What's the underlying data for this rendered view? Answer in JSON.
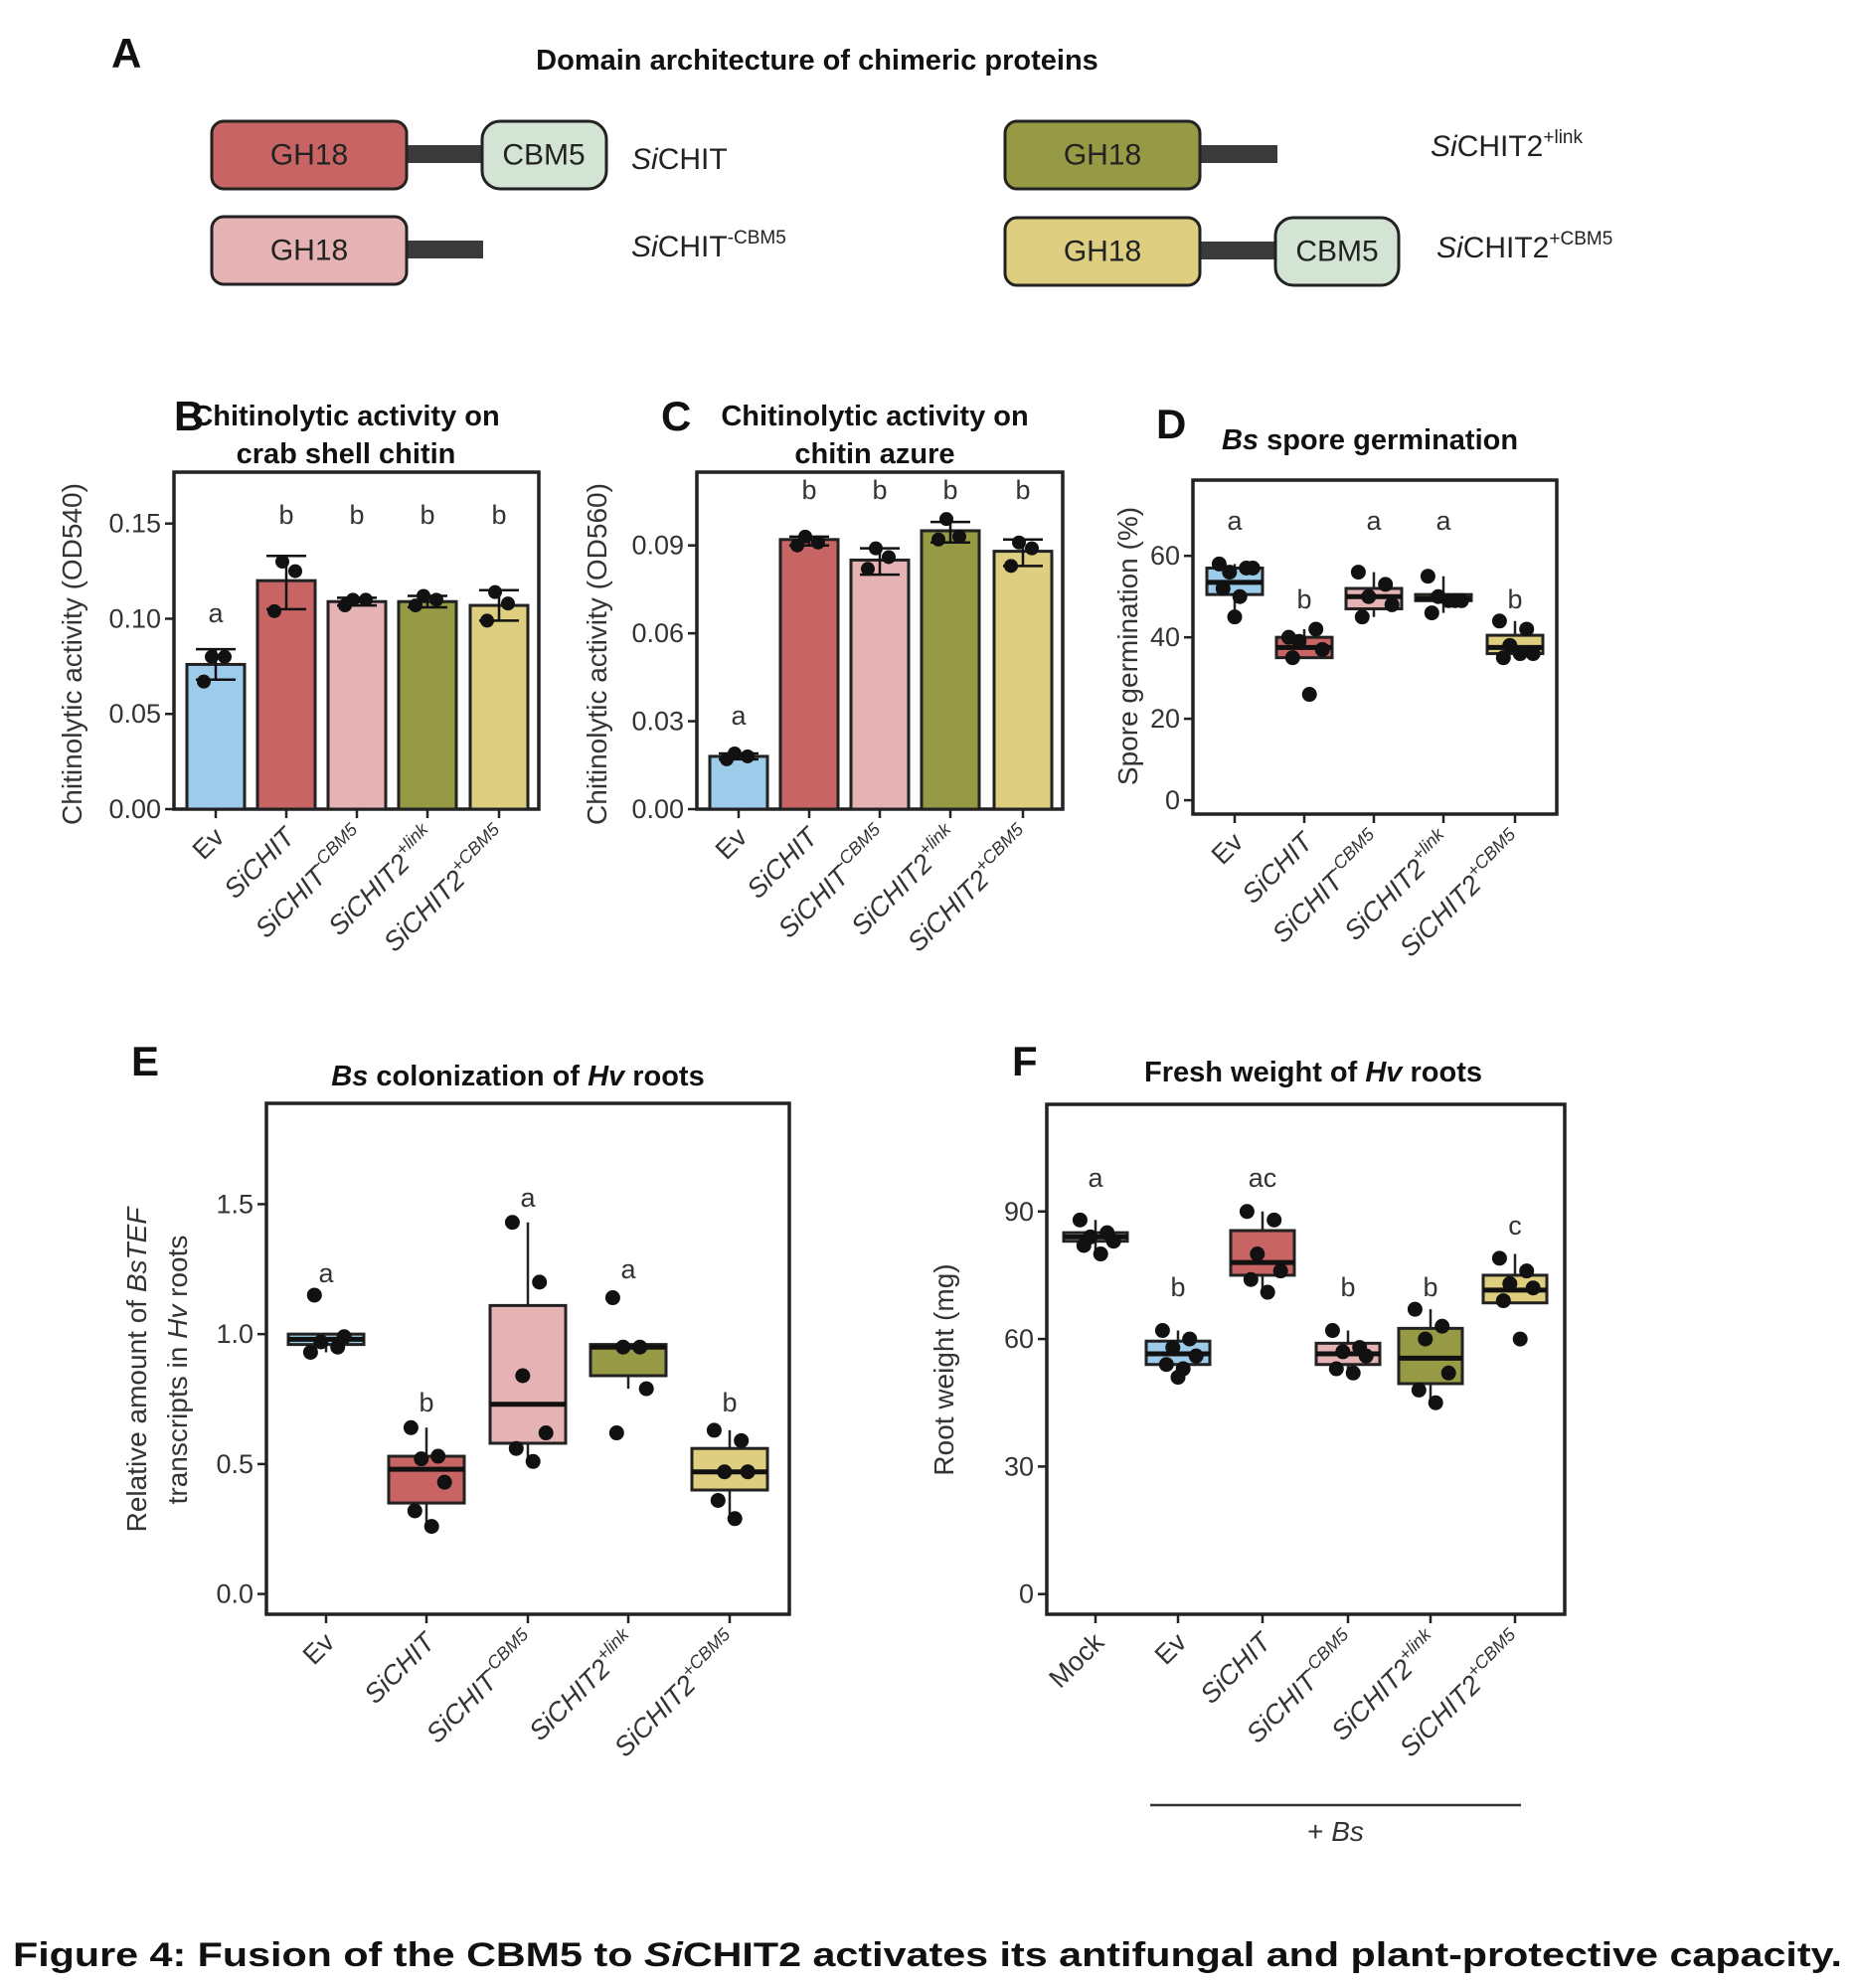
{
  "panel_a": {
    "letter": "A",
    "title": "Domain architecture of chimeric proteins",
    "constructs": [
      {
        "name_it": "Si",
        "name": "CHIT",
        "sup": "",
        "domains": [
          "GH18",
          "CBM5"
        ]
      },
      {
        "name_it": "Si",
        "name": "CHIT",
        "sup": "-CBM5",
        "domains": [
          "GH18"
        ]
      },
      {
        "name_it": "Si",
        "name": "CHIT2",
        "sup": "+link",
        "domains": [
          "GH18"
        ]
      },
      {
        "name_it": "Si",
        "name": "CHIT2",
        "sup": "+CBM5",
        "domains": [
          "GH18",
          "CBM5"
        ]
      }
    ]
  },
  "colors": {
    "Ev": "#9DCBEA",
    "SiCHIT": "#C96464",
    "SiCHIT-CBM5": "#E5B3B3",
    "SiCHIT2+link": "#979A44",
    "SiCHIT2+CBM5": "#DDCE80",
    "Mock": "#FFFFFF",
    "CBM5": "#D3E4D4",
    "linker": "#3A3A3A",
    "outline": "#222222"
  },
  "chart_data": [
    {
      "panel": "B",
      "type": "bar",
      "title_lines": [
        [
          {
            "t": "Chitinolytic activity on"
          }
        ],
        [
          {
            "t": "crab shell chitin"
          }
        ]
      ],
      "ylabel_lines": [
        [
          {
            "t": "Chitinolytic activity (OD540)"
          }
        ]
      ],
      "ylim": [
        0,
        0.177
      ],
      "yticks": [
        0,
        0.05,
        0.1,
        0.15
      ],
      "ytick_labels": [
        "0.00",
        "0.05",
        "0.10",
        "0.15"
      ],
      "categories": [
        {
          "it": "",
          "rest": "Ev",
          "sup": "",
          "color": "Ev"
        },
        {
          "it": "Si",
          "rest": "CHIT",
          "sup": "",
          "color": "SiCHIT"
        },
        {
          "it": "Si",
          "rest": "CHIT",
          "sup": "-CBM5",
          "color": "SiCHIT-CBM5"
        },
        {
          "it": "Si",
          "rest": "CHIT2",
          "sup": "+link",
          "color": "SiCHIT2+link"
        },
        {
          "it": "Si",
          "rest": "CHIT2",
          "sup": "+CBM5",
          "color": "SiCHIT2+CBM5"
        }
      ],
      "values": [
        0.076,
        0.12,
        0.109,
        0.109,
        0.107
      ],
      "err_low": [
        0.068,
        0.105,
        0.107,
        0.106,
        0.099
      ],
      "err_high": [
        0.084,
        0.133,
        0.111,
        0.112,
        0.115
      ],
      "points": [
        [
          0.067,
          0.08,
          0.08
        ],
        [
          0.104,
          0.125,
          0.13
        ],
        [
          0.107,
          0.11,
          0.11
        ],
        [
          0.107,
          0.11,
          0.112
        ],
        [
          0.099,
          0.108,
          0.114
        ]
      ],
      "letters": [
        "a",
        "b",
        "b",
        "b",
        "b"
      ]
    },
    {
      "panel": "C",
      "type": "bar",
      "title_lines": [
        [
          {
            "t": "Chitinolytic activity on"
          }
        ],
        [
          {
            "t": "chitin azure"
          }
        ]
      ],
      "ylabel_lines": [
        [
          {
            "t": "Chitinolytic activity (OD560)"
          }
        ]
      ],
      "ylim": [
        0,
        0.115
      ],
      "yticks": [
        0,
        0.03,
        0.06,
        0.09
      ],
      "ytick_labels": [
        "0.00",
        "0.03",
        "0.06",
        "0.09"
      ],
      "categories": [
        {
          "it": "",
          "rest": "Ev",
          "sup": "",
          "color": "Ev"
        },
        {
          "it": "Si",
          "rest": "CHIT",
          "sup": "",
          "color": "SiCHIT"
        },
        {
          "it": "Si",
          "rest": "CHIT",
          "sup": "-CBM5",
          "color": "SiCHIT-CBM5"
        },
        {
          "it": "Si",
          "rest": "CHIT2",
          "sup": "+link",
          "color": "SiCHIT2+link"
        },
        {
          "it": "Si",
          "rest": "CHIT2",
          "sup": "+CBM5",
          "color": "SiCHIT2+CBM5"
        }
      ],
      "values": [
        0.018,
        0.092,
        0.085,
        0.095,
        0.088
      ],
      "err_low": [
        0.017,
        0.09,
        0.08,
        0.091,
        0.083
      ],
      "err_high": [
        0.019,
        0.093,
        0.089,
        0.098,
        0.092
      ],
      "points": [
        [
          0.017,
          0.018,
          0.019
        ],
        [
          0.09,
          0.091,
          0.093
        ],
        [
          0.082,
          0.086,
          0.089
        ],
        [
          0.092,
          0.093,
          0.099
        ],
        [
          0.083,
          0.089,
          0.091
        ]
      ],
      "letters": [
        "a",
        "b",
        "b",
        "b",
        "b"
      ]
    },
    {
      "panel": "D",
      "type": "box",
      "title_lines": [
        [
          {
            "t": "Bs",
            "i": true
          },
          {
            "t": " spore germination"
          }
        ]
      ],
      "ylabel_lines": [
        [
          {
            "t": "Spore germination (%)"
          }
        ]
      ],
      "ylim": [
        -3.4,
        78.6
      ],
      "yticks": [
        0,
        20,
        40,
        60
      ],
      "ytick_labels": [
        "0",
        "20",
        "40",
        "60"
      ],
      "categories": [
        {
          "it": "",
          "rest": "Ev",
          "sup": "",
          "color": "Ev"
        },
        {
          "it": "Si",
          "rest": "CHIT",
          "sup": "",
          "color": "SiCHIT"
        },
        {
          "it": "Si",
          "rest": "CHIT",
          "sup": "-CBM5",
          "color": "SiCHIT-CBM5"
        },
        {
          "it": "Si",
          "rest": "CHIT2",
          "sup": "+link",
          "color": "SiCHIT2+link"
        },
        {
          "it": "Si",
          "rest": "CHIT2",
          "sup": "+CBM5",
          "color": "SiCHIT2+CBM5"
        }
      ],
      "boxes": [
        {
          "lo": 45,
          "q1": 50.5,
          "median": 53.5,
          "q3": 57,
          "hi": 58
        },
        {
          "lo": 35,
          "q1": 35,
          "median": 37.5,
          "q3": 40,
          "hi": 42
        },
        {
          "lo": 45,
          "q1": 47,
          "median": 50,
          "q3": 52,
          "hi": 56
        },
        {
          "lo": 46,
          "q1": 49,
          "median": 49.5,
          "q3": 50.5,
          "hi": 55
        },
        {
          "lo": 35,
          "q1": 36,
          "median": 37.5,
          "q3": 40.5,
          "hi": 44
        }
      ],
      "points": [
        [
          58,
          57,
          56,
          57,
          52,
          50,
          45
        ],
        [
          40,
          42,
          39,
          37,
          35,
          26
        ],
        [
          56,
          53,
          50,
          48,
          45
        ],
        [
          55,
          49,
          50,
          49,
          46,
          49
        ],
        [
          44,
          42,
          38,
          36,
          35,
          36
        ]
      ],
      "letters": [
        "a",
        "b",
        "a",
        "a",
        "b"
      ]
    },
    {
      "panel": "E",
      "type": "box",
      "title_lines": [
        [
          {
            "t": "Bs",
            "i": true
          },
          {
            "t": " colonization of "
          },
          {
            "t": "Hv",
            "i": true
          },
          {
            "t": " roots"
          }
        ]
      ],
      "ylabel_lines": [
        [
          {
            "t": "Relative amount of "
          },
          {
            "t": "BsTEF",
            "i": true
          }
        ],
        [
          {
            "t": "transcripts in "
          },
          {
            "t": "Hv",
            "i": true
          },
          {
            "t": " roots"
          }
        ]
      ],
      "ylim": [
        -0.078,
        1.888
      ],
      "yticks": [
        0,
        0.5,
        1.0,
        1.5
      ],
      "ytick_labels": [
        "0.0",
        "0.5",
        "1.0",
        "1.5"
      ],
      "categories": [
        {
          "it": "",
          "rest": "Ev",
          "sup": "",
          "color": "Ev"
        },
        {
          "it": "Si",
          "rest": "CHIT",
          "sup": "",
          "color": "SiCHIT"
        },
        {
          "it": "Si",
          "rest": "CHIT",
          "sup": "-CBM5",
          "color": "SiCHIT-CBM5"
        },
        {
          "it": "Si",
          "rest": "CHIT2",
          "sup": "+link",
          "color": "SiCHIT2+link"
        },
        {
          "it": "Si",
          "rest": "CHIT2",
          "sup": "+CBM5",
          "color": "SiCHIT2+CBM5"
        }
      ],
      "boxes": [
        {
          "lo": 0.93,
          "q1": 0.96,
          "median": 0.98,
          "q3": 1.0,
          "hi": 1.0
        },
        {
          "lo": 0.26,
          "q1": 0.35,
          "median": 0.48,
          "q3": 0.53,
          "hi": 0.64
        },
        {
          "lo": 0.51,
          "q1": 0.58,
          "median": 0.73,
          "q3": 1.11,
          "hi": 1.43
        },
        {
          "lo": 0.79,
          "q1": 0.84,
          "median": 0.95,
          "q3": 0.96,
          "hi": 0.96
        },
        {
          "lo": 0.29,
          "q1": 0.4,
          "median": 0.47,
          "q3": 0.56,
          "hi": 0.63
        }
      ],
      "points": [
        [
          0.93,
          0.95,
          0.97,
          0.99,
          1.15
        ],
        [
          0.64,
          0.53,
          0.52,
          0.43,
          0.32,
          0.26
        ],
        [
          1.43,
          1.2,
          0.84,
          0.62,
          0.56,
          0.51
        ],
        [
          1.14,
          0.95,
          0.95,
          0.79,
          0.62
        ],
        [
          0.63,
          0.59,
          0.47,
          0.47,
          0.36,
          0.29
        ]
      ],
      "letters": [
        "a",
        "b",
        "a",
        "a",
        "b"
      ]
    },
    {
      "panel": "F",
      "type": "box",
      "title_lines": [
        [
          {
            "t": "Fresh weight of "
          },
          {
            "t": "Hv",
            "i": true
          },
          {
            "t": " roots"
          }
        ]
      ],
      "ylabel_lines": [
        [
          {
            "t": "Root weight (mg)"
          }
        ]
      ],
      "ylim": [
        -4.75,
        115.2
      ],
      "yticks": [
        0,
        30,
        60,
        90
      ],
      "ytick_labels": [
        "0",
        "30",
        "60",
        "90"
      ],
      "categories": [
        {
          "it": "",
          "rest": "Mock",
          "sup": "",
          "color": "Mock"
        },
        {
          "it": "",
          "rest": "Ev",
          "sup": "",
          "color": "Ev"
        },
        {
          "it": "Si",
          "rest": "CHIT",
          "sup": "",
          "color": "SiCHIT"
        },
        {
          "it": "Si",
          "rest": "CHIT",
          "sup": "-CBM5",
          "color": "SiCHIT-CBM5"
        },
        {
          "it": "Si",
          "rest": "CHIT2",
          "sup": "+link",
          "color": "SiCHIT2+link"
        },
        {
          "it": "Si",
          "rest": "CHIT2",
          "sup": "+CBM5",
          "color": "SiCHIT2+CBM5"
        }
      ],
      "boxes": [
        {
          "lo": 80,
          "q1": 83,
          "median": 84,
          "q3": 85,
          "hi": 88
        },
        {
          "lo": 51,
          "q1": 54,
          "median": 56.5,
          "q3": 59.5,
          "hi": 62
        },
        {
          "lo": 71,
          "q1": 75,
          "median": 78,
          "q3": 85.5,
          "hi": 90
        },
        {
          "lo": 52,
          "q1": 54,
          "median": 56.5,
          "q3": 59,
          "hi": 62
        },
        {
          "lo": 45,
          "q1": 49.5,
          "median": 55.5,
          "q3": 62.5,
          "hi": 67
        },
        {
          "lo": 68.5,
          "q1": 68.5,
          "median": 71.5,
          "q3": 75,
          "hi": 80
        }
      ],
      "points": [
        [
          88,
          85,
          84,
          83,
          82,
          80
        ],
        [
          62,
          60,
          58,
          56,
          54,
          53,
          51
        ],
        [
          90,
          88,
          80,
          76,
          74,
          71
        ],
        [
          62,
          58,
          57,
          56,
          53,
          52
        ],
        [
          67,
          63,
          60,
          52,
          48,
          45
        ],
        [
          79,
          76,
          73,
          72,
          69,
          60
        ]
      ],
      "letters": [
        "a",
        "b",
        "ac",
        "b",
        "b",
        "c"
      ],
      "group_label_parts": [
        {
          "t": "+ "
        },
        {
          "t": "Bs",
          "i": true
        }
      ],
      "group_span": [
        1,
        5
      ]
    }
  ],
  "caption": {
    "prefix": "Figure 4: Fusion of the CBM5 to ",
    "it": "Si",
    "rest": "CHIT2 activates its antifungal and plant-protective capacity."
  }
}
